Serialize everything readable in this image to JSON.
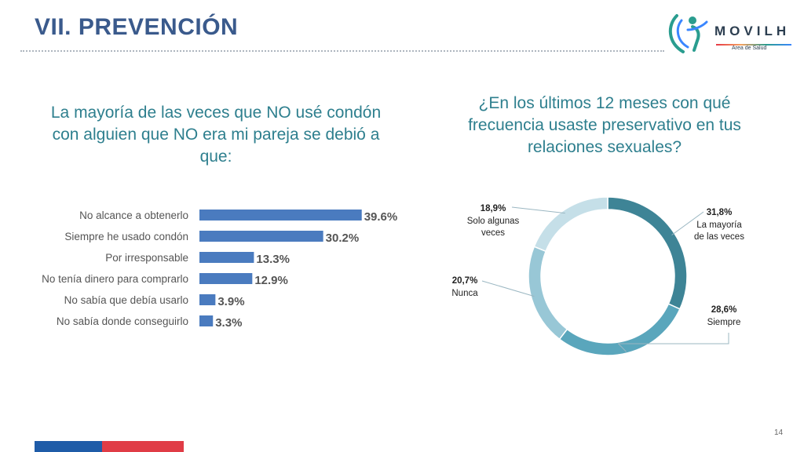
{
  "header": {
    "title": "VII. PREVENCIÓN"
  },
  "logo": {
    "name": "MOVILH",
    "subtitle": "Area de Salud"
  },
  "questions": {
    "left": "La mayoría de las veces que NO usé condón con alguien que NO era mi pareja se debió a que:",
    "right": "¿En los últimos 12 meses con qué frecuencia usaste preservativo en tus relaciones sexuales?"
  },
  "chart_data": [
    {
      "type": "bar",
      "orientation": "horizontal",
      "categories": [
        "No alcance a obtenerlo",
        "Siempre he usado condón",
        "Por irresponsable",
        "No tenía dinero para comprarlo",
        "No sabía que debía usarlo",
        "No sabía donde conseguirlo"
      ],
      "values": [
        39.6,
        30.2,
        13.3,
        12.9,
        3.9,
        3.3
      ],
      "value_labels": [
        "39.6%",
        "30.2%",
        "13.3%",
        "12.9%",
        "3.9%",
        "3.3%"
      ],
      "color": "#4a7bbf"
    },
    {
      "type": "pie",
      "style": "donut",
      "slices": [
        {
          "label": "La mayoría de las veces",
          "value": 31.8,
          "value_label": "31,8%",
          "color": "#3e8496"
        },
        {
          "label": "Siempre",
          "value": 28.6,
          "value_label": "28,6%",
          "color": "#5aa6bc"
        },
        {
          "label": "Nunca",
          "value": 20.7,
          "value_label": "20,7%",
          "color": "#98c7d6"
        },
        {
          "label": "Solo algunas veces",
          "value": 18.9,
          "value_label": "18,9%",
          "color": "#c5dfe8"
        }
      ]
    }
  ],
  "page": {
    "number": "14"
  },
  "colors": {
    "title": "#3a5a8c",
    "question": "#2e7f8e",
    "footer_blue": "#1f5ca8",
    "footer_red": "#e03c46"
  }
}
